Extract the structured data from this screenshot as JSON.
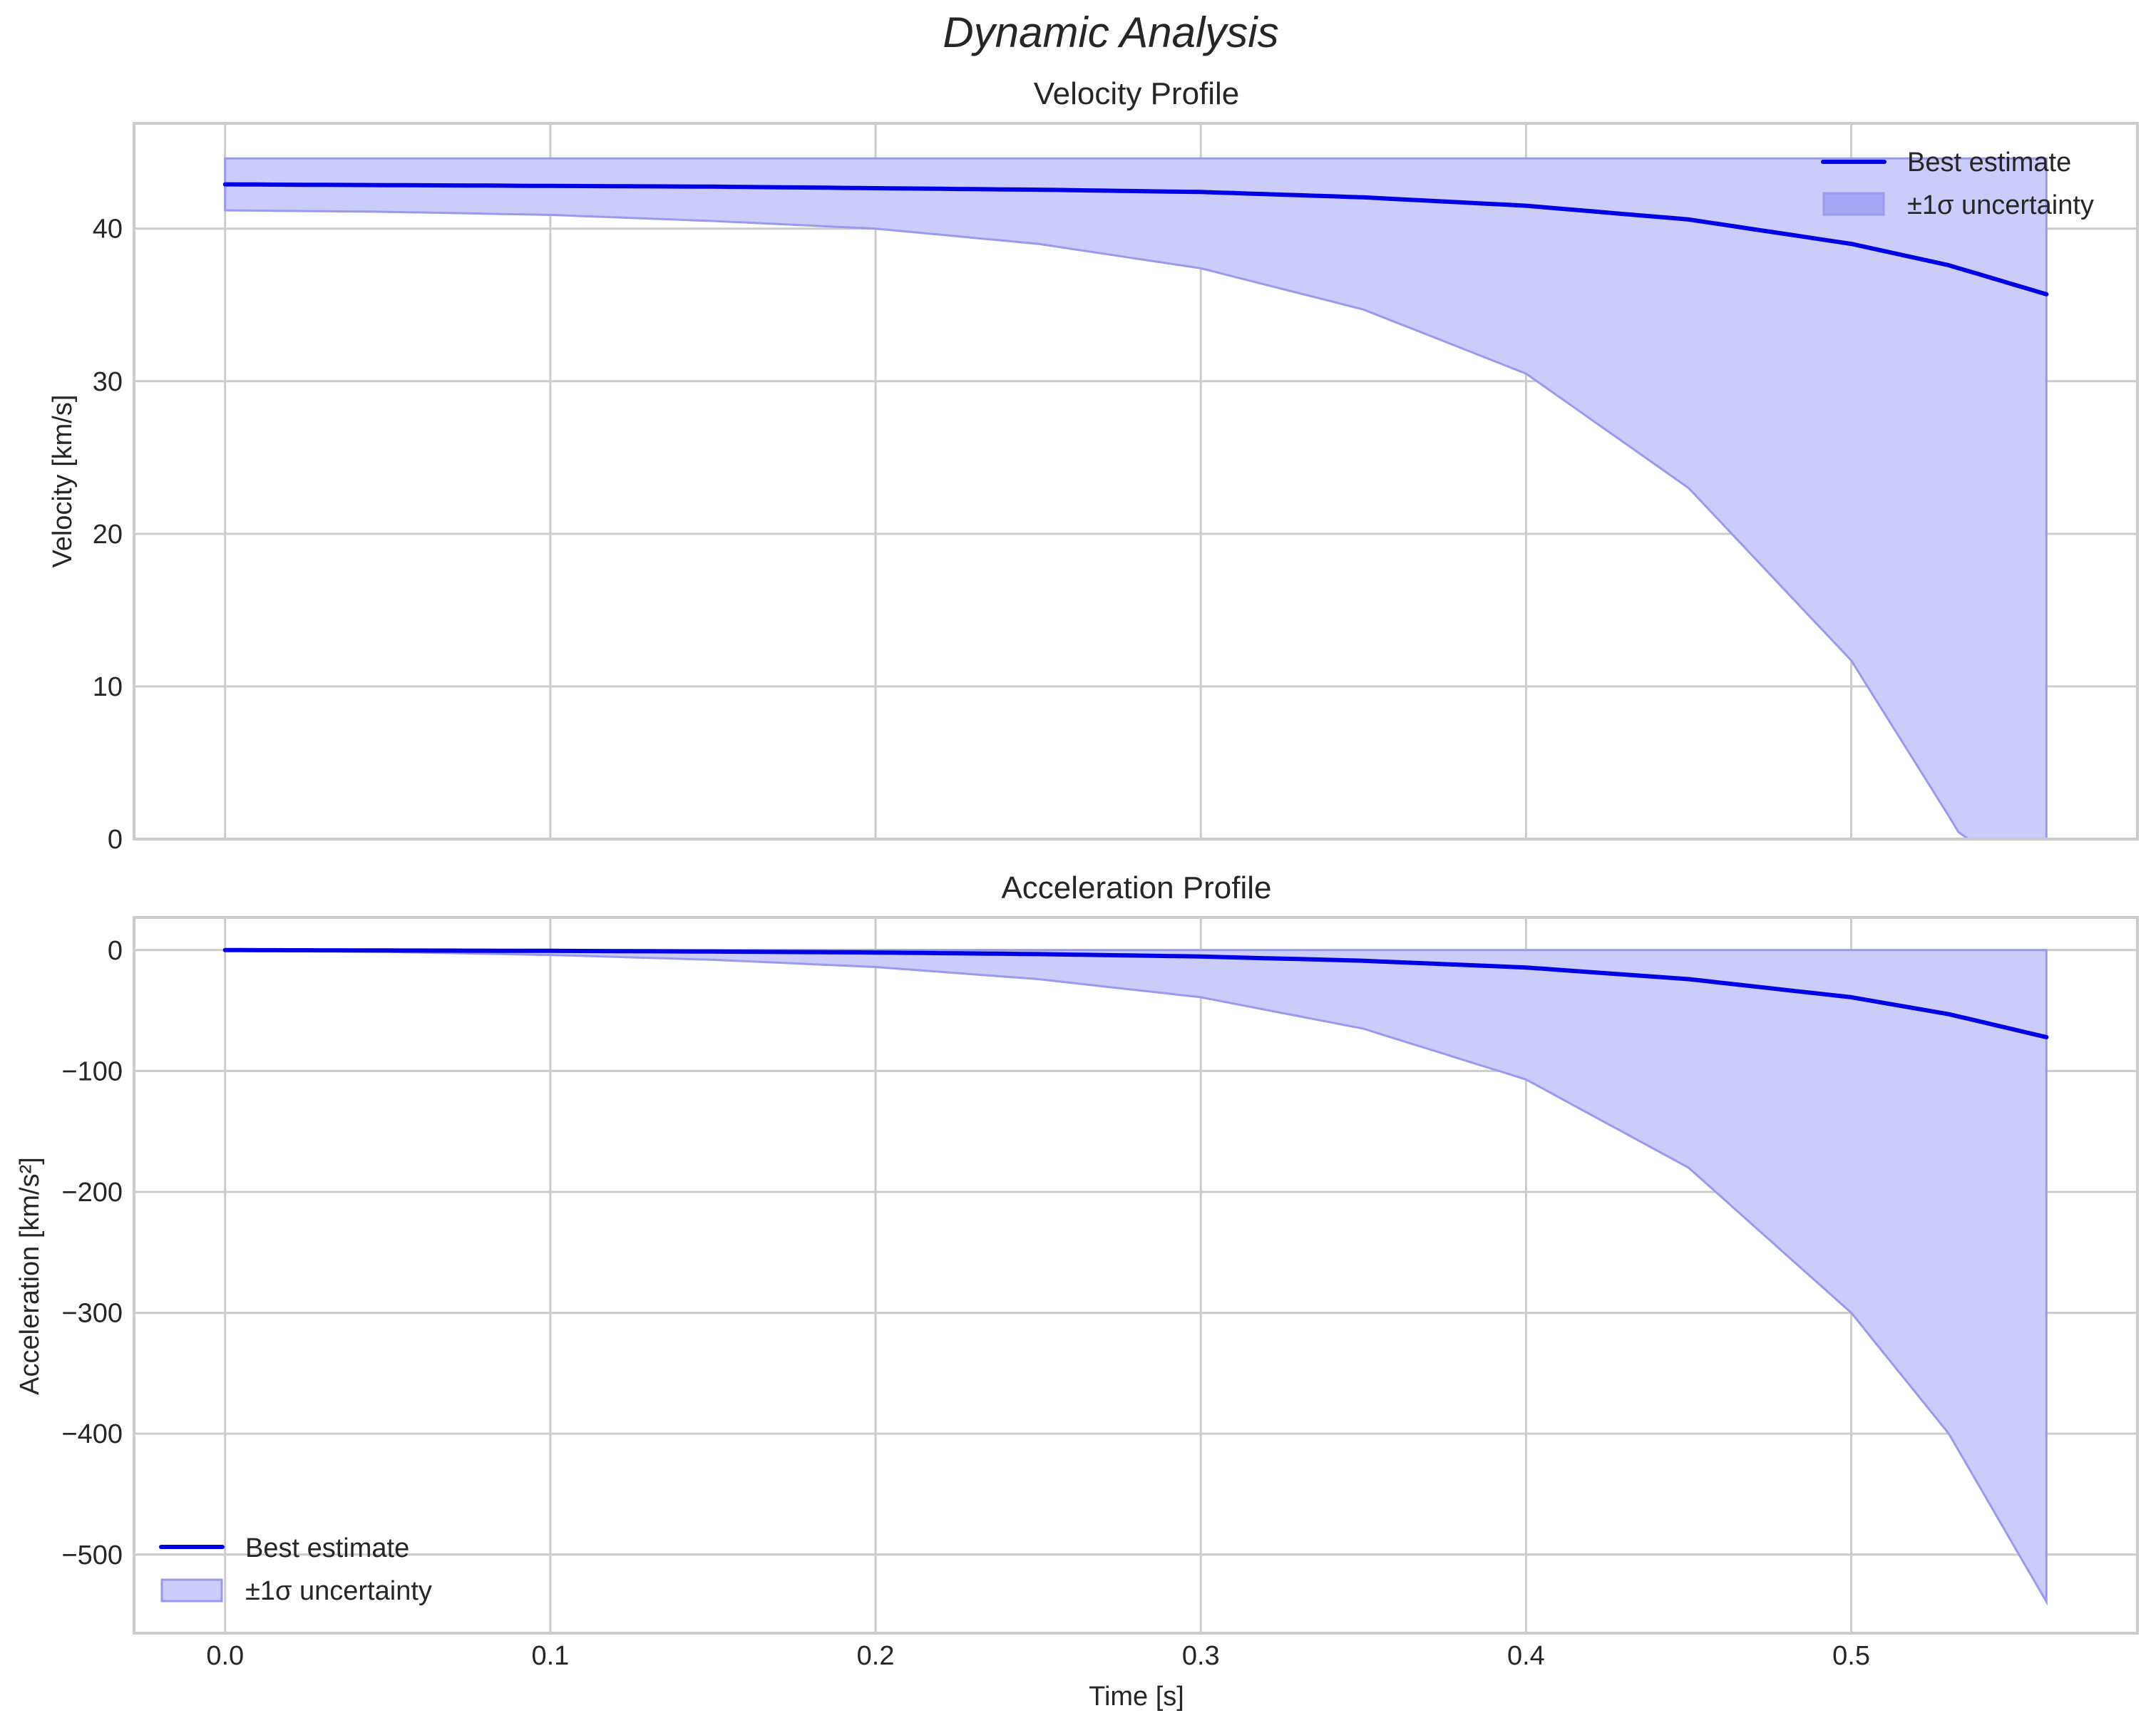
{
  "figure": {
    "title": "Dynamic Analysis",
    "x_label": "Time [s]"
  },
  "panels": [
    {
      "title": "Velocity Profile",
      "y_label": "Velocity [km/s]",
      "y_ticks": [
        "0",
        "10",
        "20",
        "30",
        "40"
      ],
      "legend": {
        "position": "upper right",
        "line_label": "Best estimate",
        "band_label": "±1σ uncertainty"
      }
    },
    {
      "title": "Acceleration Profile",
      "y_label": "Acceleration [km/s²]",
      "y_ticks": [
        "0",
        "−100",
        "−200",
        "−300",
        "−400",
        "−500"
      ],
      "legend": {
        "position": "lower left",
        "line_label": "Best estimate",
        "band_label": "±1σ uncertainty"
      }
    }
  ],
  "x_ticks": [
    "0.0",
    "0.1",
    "0.2",
    "0.3",
    "0.4",
    "0.5"
  ],
  "colors": {
    "line": "#0000e6",
    "band_fill": "#ccccfa",
    "band_edge": "#9999f0",
    "grid": "#cccccc",
    "text": "#262626"
  },
  "chart_data": [
    {
      "type": "line",
      "title": "Velocity Profile",
      "xlabel": "Time [s]",
      "ylabel": "Velocity [km/s]",
      "xlim": [
        -0.028,
        0.588
      ],
      "ylim": [
        0,
        46.9
      ],
      "x_ticks": [
        0.0,
        0.1,
        0.2,
        0.3,
        0.4,
        0.5
      ],
      "y_ticks": [
        0,
        10,
        20,
        30,
        40
      ],
      "grid": true,
      "legend_position": "upper right",
      "x": [
        0.0,
        0.05,
        0.1,
        0.15,
        0.2,
        0.25,
        0.3,
        0.35,
        0.4,
        0.45,
        0.5,
        0.53,
        0.56
      ],
      "series": [
        {
          "name": "Best estimate",
          "kind": "line",
          "values": [
            42.9,
            42.85,
            42.8,
            42.75,
            42.65,
            42.55,
            42.4,
            42.05,
            41.5,
            40.6,
            39.0,
            37.6,
            35.7
          ]
        },
        {
          "name": "±1σ uncertainty (upper)",
          "kind": "band_upper",
          "values": [
            44.6,
            44.6,
            44.6,
            44.6,
            44.6,
            44.6,
            44.6,
            44.6,
            44.6,
            44.6,
            44.6,
            44.6,
            44.6
          ]
        },
        {
          "name": "±1σ uncertainty (lower)",
          "kind": "band_lower",
          "values": [
            41.2,
            41.1,
            40.9,
            40.5,
            40.0,
            39.0,
            37.4,
            34.7,
            30.5,
            23.0,
            11.7,
            1.5,
            -9.0
          ]
        }
      ]
    },
    {
      "type": "line",
      "title": "Acceleration Profile",
      "xlabel": "Time [s]",
      "ylabel": "Acceleration [km/s²]",
      "xlim": [
        -0.028,
        0.588
      ],
      "ylim": [
        -565,
        27
      ],
      "x_ticks": [
        0.0,
        0.1,
        0.2,
        0.3,
        0.4,
        0.5
      ],
      "y_ticks": [
        0,
        -100,
        -200,
        -300,
        -400,
        -500
      ],
      "grid": true,
      "legend_position": "lower left",
      "x": [
        0.0,
        0.05,
        0.1,
        0.15,
        0.2,
        0.25,
        0.3,
        0.35,
        0.4,
        0.45,
        0.5,
        0.53,
        0.56
      ],
      "series": [
        {
          "name": "Best estimate",
          "kind": "line",
          "values": [
            0,
            -0.3,
            -0.6,
            -1.2,
            -2.0,
            -3.3,
            -5.3,
            -8.8,
            -14.4,
            -24,
            -39,
            -53,
            -72
          ]
        },
        {
          "name": "±1σ uncertainty (upper)",
          "kind": "band_upper",
          "values": [
            0,
            0,
            0,
            0,
            0,
            0,
            0,
            0,
            0,
            0,
            0,
            0,
            0
          ]
        },
        {
          "name": "±1σ uncertainty (lower)",
          "kind": "band_lower",
          "values": [
            0,
            -1.5,
            -4,
            -8,
            -14,
            -24,
            -39,
            -65,
            -107,
            -180,
            -300,
            -400,
            -539
          ]
        }
      ]
    }
  ]
}
